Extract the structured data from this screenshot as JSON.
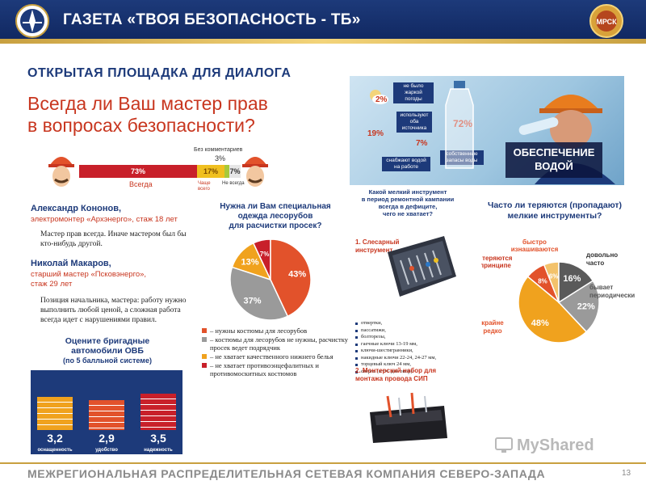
{
  "header": {
    "title": "ГАЗЕТА «ТВОЯ БЕЗОПАСНОСТЬ - ТБ»",
    "logo_right_text": "МРСК"
  },
  "section_title": "ОТКРЫТАЯ ПЛОЩАДКА ДЛЯ ДИАЛОГА",
  "question": {
    "line1": "Всегда ли Ваш мастер прав",
    "line2": "в вопросах безопасности?"
  },
  "master_bar": {
    "always_pct": "73%",
    "always_label": "Всегда",
    "often_pct": "17%",
    "often_label": "Чаще всего",
    "never_pct": "7%",
    "never_label": "Не всегда",
    "nocomment_label": "Без комментариев",
    "nocomment_pct": "3%",
    "values": [
      73,
      17,
      7,
      3
    ]
  },
  "quotes": [
    {
      "name": "Александр Кононов,",
      "role": "электромонтер «Архэнерго», стаж 18 лет",
      "text": "Мастер прав всегда. Иначе мастером был бы кто-нибудь другой."
    },
    {
      "name": "Николай Макаров,",
      "role_line1": "старший мастер «Псковэнерго»,",
      "role_line2": "стаж 29 лет",
      "text": "Позиция начальника, мастера: работу нужно выполнить любой ценой, а сложная работа всегда идет с нарушениями правил."
    }
  ],
  "rating": {
    "title_line1": "Оцените бригадные",
    "title_line2": "автомобили ОВБ",
    "title_line3": "(по 5 балльной системе)",
    "items": [
      {
        "value": "3,2",
        "label": "оснащенность",
        "score": 3.2
      },
      {
        "value": "2,9",
        "label": "удобство",
        "score": 2.9
      },
      {
        "value": "3,5",
        "label": "надежность",
        "score": 3.5
      }
    ],
    "max": 5
  },
  "survey": {
    "title_line1": "Нужна ли Вам специальная",
    "title_line2": "одежда лесорубов",
    "title_line3": "для расчистки просек?",
    "legend": [
      {
        "text": "– нужны костюмы для лесорубов",
        "color": "#e2522b"
      },
      {
        "text": "– костюмы для лесорубов не нужны, расчистку просек ведет подрядчик",
        "color": "#9a9a9a"
      },
      {
        "text": "– не хватает качественного нижнего белья",
        "color": "#f0a21e"
      },
      {
        "text": "– не хватает противоэнцефалитных и противомоскитных костюмов",
        "color": "#c8202a"
      }
    ]
  },
  "water": {
    "tags": [
      "не было жаркой погоды",
      "используют оба источника",
      "снабжают водой на работе",
      "собственные запасы воды"
    ],
    "pcts": [
      "2%",
      "19%",
      "7%",
      "72%"
    ],
    "banner_line1": "ОБЕСПЕЧЕНИЕ",
    "banner_line2": "ВОДОЙ"
  },
  "tools": {
    "title_line1": "Какой мелкий инструмент",
    "title_line2": "в период ремонтной кампании",
    "title_line3": "всегда в дефиците,",
    "title_line4": "чего не хватает?",
    "sub1_line1": "1. Слесарный",
    "sub1_line2": "инструмент",
    "list": [
      "отвертки,",
      "пассатижи,",
      "болторезы,",
      "гаечные ключи 13-19 мм,",
      "ключи-шестигранники,",
      "накидные ключи 22-24, 24-27 мм,",
      "торцевый ключ 24 мм,",
      "сверла (в т.ч. для опор)"
    ],
    "sub2_line1": "2. Монтерский набор для",
    "sub2_line2": "монтажа провода СИП"
  },
  "lost": {
    "title_line1": "Часто ли теряются (пропадают)",
    "title_line2": "мелкие инструменты?",
    "labels": {
      "worn_line1": "быстро",
      "worn_line2": "изнашиваются",
      "notlost_line1": "не теряются",
      "notlost_line2": "в принципе",
      "often_line1": "довольно",
      "often_line2": "часто",
      "periodic_line1": "бывает",
      "periodic_line2": "периодически",
      "rare_line1": "крайне",
      "rare_line2": "редко"
    }
  },
  "chart_data": [
    {
      "type": "pie",
      "title": "Нужна ли Вам специальная одежда лесорубов для расчистки просек?",
      "categories": [
        "нужны костюмы для лесорубов",
        "костюмы для лесорубов не нужны, расчистку просек ведет подрядчик",
        "не хватает качественного нижнего белья",
        "не хватает противоэнцефалитных и противомоскитных костюмов"
      ],
      "values": [
        43,
        37,
        13,
        7
      ],
      "labels": [
        "43%",
        "37%",
        "13%",
        "7%"
      ],
      "colors": [
        "#e2522b",
        "#9a9a9a",
        "#f0a21e",
        "#c8202a"
      ]
    },
    {
      "type": "pie",
      "title": "Часто ли теряются (пропадают) мелкие инструменты?",
      "categories": [
        "довольно часто",
        "бывает периодически",
        "крайне редко",
        "не теряются в принципе",
        "быстро изнашиваются"
      ],
      "values": [
        16,
        22,
        48,
        8,
        6
      ],
      "labels": [
        "16%",
        "22%",
        "48%",
        "8%",
        "6%"
      ],
      "colors": [
        "#5a5a5a",
        "#9a9a9a",
        "#f0a21e",
        "#e2522b",
        "#f3c26b"
      ]
    }
  ],
  "watermark": "MyShared",
  "footer": {
    "text": "МЕЖРЕГИОНАЛЬНАЯ РАСПРЕДЕЛИТЕЛЬНАЯ СЕТЕВАЯ КОМПАНИЯ СЕВЕРО-ЗАПАДА",
    "page": "13"
  },
  "colors": {
    "brand_blue": "#1d3a7a",
    "accent_red": "#c8361f",
    "gold": "#c8a040"
  }
}
